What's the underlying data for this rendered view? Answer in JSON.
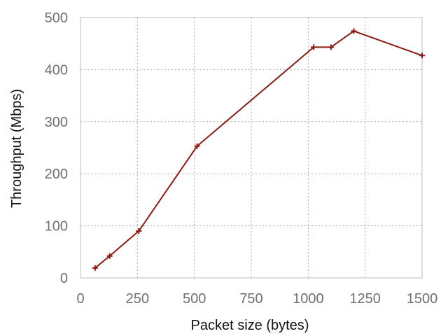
{
  "chart_data": {
    "type": "line",
    "title": "",
    "xlabel": "Packet size (bytes)",
    "ylabel": "Throughput (Mbps)",
    "xlim": [
      0,
      1500
    ],
    "ylim": [
      0,
      500
    ],
    "x_ticks": [
      0,
      250,
      500,
      750,
      1000,
      1250,
      1500
    ],
    "y_ticks": [
      0,
      100,
      200,
      300,
      400,
      500
    ],
    "x_tick_labels": [
      "0",
      "250",
      "500",
      "750",
      "1000",
      "1250",
      "1500"
    ],
    "y_tick_labels": [
      "0",
      "100",
      "200",
      "300",
      "400",
      "500"
    ],
    "grid": true,
    "legend": false,
    "series": [
      {
        "x": [
          64,
          128,
          256,
          512,
          1024,
          1100,
          1200,
          1500
        ],
        "y": [
          19,
          42,
          90,
          253,
          443,
          443,
          474,
          427
        ],
        "color": "#8b1a12",
        "marker": "plus"
      }
    ]
  },
  "colors": {
    "series": "#8b1a12",
    "grid": "#a9a9a9",
    "frame": "#bdbdbd",
    "tick_text": "#6f6f6f",
    "axis_text": "#111111"
  }
}
